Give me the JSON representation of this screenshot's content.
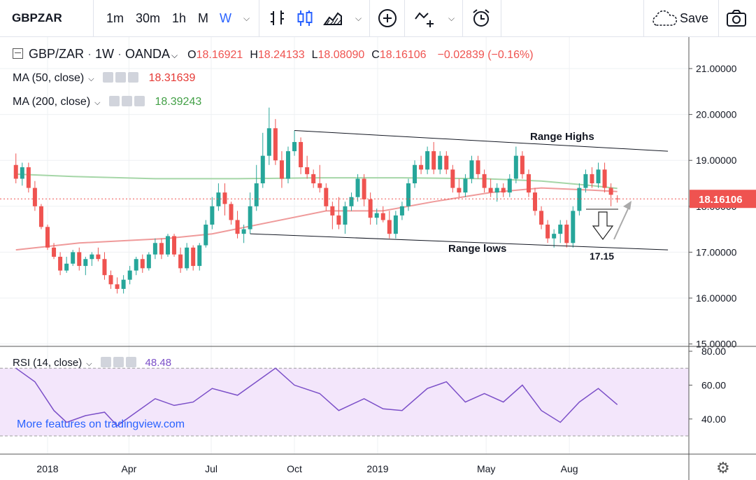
{
  "toolbar": {
    "symbol": "GBPZAR",
    "intervals": [
      "1m",
      "30m",
      "1h",
      "M",
      "W"
    ],
    "active_interval": "W",
    "save_label": "Save"
  },
  "legend": {
    "pair": "GBP/ZAR",
    "interval": "1W",
    "source": "OANDA",
    "open_label": "O",
    "open": "18.16921",
    "high_label": "H",
    "high": "18.24133",
    "low_label": "L",
    "low": "18.08090",
    "close_label": "C",
    "close": "18.16106",
    "change": "−0.02839 (−0.16%)",
    "ma50_label": "MA (50, close)",
    "ma50_value": "18.31639",
    "ma200_label": "MA (200, close)",
    "ma200_value": "18.39243",
    "rsi_label": "RSI (14, close)",
    "rsi_value": "48.48"
  },
  "colors": {
    "up": "#26a69a",
    "down": "#ef5350",
    "ma50": "#ef9a9a",
    "ma200": "#a5d6a7",
    "rsi_line": "#7b4fc8",
    "rsi_band": "#f3e6fb",
    "accent": "#2962ff"
  },
  "watermark": "More features on tradingview.com",
  "annotations": {
    "range_highs": "Range Highs",
    "range_lows": "Range lows",
    "target": "17.15"
  },
  "chart_data": [
    {
      "type": "candlestick",
      "title": "GBP/ZAR · 1W · OANDA",
      "ylim": [
        14.9,
        21.4
      ],
      "yticks": [
        "21.00000",
        "20.00000",
        "19.00000",
        "18.00000",
        "17.00000",
        "16.00000",
        "15.00000"
      ],
      "ytick_values": [
        21,
        20,
        19,
        18,
        17,
        16,
        15
      ],
      "xticks": [
        "2018",
        "Apr",
        "Jul",
        "Oct",
        "2019",
        "May",
        "Aug"
      ],
      "xtick_dates": [
        "2018-01-01",
        "2018-04-01",
        "2018-07-01",
        "2018-10-01",
        "2019-01-01",
        "2019-05-01",
        "2019-08-01"
      ],
      "last_price": "18.16106",
      "candles": [
        {
          "date": "2017-11-27",
          "o": 18.9,
          "h": 19.15,
          "l": 18.5,
          "c": 18.6
        },
        {
          "date": "2017-12-04",
          "o": 18.6,
          "h": 18.95,
          "l": 18.45,
          "c": 18.85
        },
        {
          "date": "2017-12-11",
          "o": 18.85,
          "h": 18.95,
          "l": 18.3,
          "c": 18.4
        },
        {
          "date": "2017-12-18",
          "o": 18.4,
          "h": 18.55,
          "l": 17.9,
          "c": 18.0
        },
        {
          "date": "2017-12-25",
          "o": 18.0,
          "h": 18.05,
          "l": 17.5,
          "c": 17.55
        },
        {
          "date": "2018-01-01",
          "o": 17.55,
          "h": 17.6,
          "l": 17.05,
          "c": 17.1
        },
        {
          "date": "2018-01-08",
          "o": 17.1,
          "h": 17.2,
          "l": 16.85,
          "c": 16.9
        },
        {
          "date": "2018-01-15",
          "o": 16.9,
          "h": 17.0,
          "l": 16.5,
          "c": 16.6
        },
        {
          "date": "2018-01-22",
          "o": 16.6,
          "h": 16.9,
          "l": 16.55,
          "c": 16.75
        },
        {
          "date": "2018-01-29",
          "o": 16.75,
          "h": 17.05,
          "l": 16.7,
          "c": 17.0
        },
        {
          "date": "2018-02-05",
          "o": 17.0,
          "h": 17.1,
          "l": 16.6,
          "c": 16.7
        },
        {
          "date": "2018-02-12",
          "o": 16.7,
          "h": 16.9,
          "l": 16.5,
          "c": 16.85
        },
        {
          "date": "2018-02-19",
          "o": 16.85,
          "h": 17.0,
          "l": 16.7,
          "c": 16.95
        },
        {
          "date": "2018-02-26",
          "o": 16.95,
          "h": 17.1,
          "l": 16.8,
          "c": 16.85
        },
        {
          "date": "2018-03-05",
          "o": 16.85,
          "h": 17.0,
          "l": 16.4,
          "c": 16.5
        },
        {
          "date": "2018-03-12",
          "o": 16.5,
          "h": 16.6,
          "l": 16.2,
          "c": 16.3
        },
        {
          "date": "2018-03-19",
          "o": 16.3,
          "h": 16.45,
          "l": 16.1,
          "c": 16.2
        },
        {
          "date": "2018-03-26",
          "o": 16.2,
          "h": 16.5,
          "l": 16.1,
          "c": 16.4
        },
        {
          "date": "2018-04-02",
          "o": 16.4,
          "h": 16.7,
          "l": 16.3,
          "c": 16.6
        },
        {
          "date": "2018-04-09",
          "o": 16.6,
          "h": 16.9,
          "l": 16.5,
          "c": 16.85
        },
        {
          "date": "2018-04-16",
          "o": 16.85,
          "h": 16.95,
          "l": 16.55,
          "c": 16.65
        },
        {
          "date": "2018-04-23",
          "o": 16.65,
          "h": 17.0,
          "l": 16.6,
          "c": 16.95
        },
        {
          "date": "2018-04-30",
          "o": 16.95,
          "h": 17.3,
          "l": 16.85,
          "c": 17.2
        },
        {
          "date": "2018-05-07",
          "o": 17.2,
          "h": 17.3,
          "l": 16.85,
          "c": 16.95
        },
        {
          "date": "2018-05-14",
          "o": 16.95,
          "h": 17.4,
          "l": 16.9,
          "c": 17.35
        },
        {
          "date": "2018-05-21",
          "o": 17.35,
          "h": 17.4,
          "l": 16.9,
          "c": 16.95
        },
        {
          "date": "2018-05-28",
          "o": 16.95,
          "h": 17.1,
          "l": 16.55,
          "c": 16.65
        },
        {
          "date": "2018-06-04",
          "o": 16.65,
          "h": 17.2,
          "l": 16.6,
          "c": 17.1
        },
        {
          "date": "2018-06-11",
          "o": 17.1,
          "h": 17.15,
          "l": 16.6,
          "c": 16.7
        },
        {
          "date": "2018-06-18",
          "o": 16.7,
          "h": 17.2,
          "l": 16.6,
          "c": 17.15
        },
        {
          "date": "2018-06-25",
          "o": 17.15,
          "h": 17.7,
          "l": 17.1,
          "c": 17.6
        },
        {
          "date": "2018-07-02",
          "o": 17.6,
          "h": 18.2,
          "l": 17.5,
          "c": 18.0
        },
        {
          "date": "2018-07-09",
          "o": 18.0,
          "h": 18.5,
          "l": 17.9,
          "c": 18.3
        },
        {
          "date": "2018-07-16",
          "o": 18.3,
          "h": 18.5,
          "l": 17.8,
          "c": 18.05
        },
        {
          "date": "2018-07-23",
          "o": 18.05,
          "h": 18.1,
          "l": 17.6,
          "c": 17.7
        },
        {
          "date": "2018-07-30",
          "o": 17.7,
          "h": 17.9,
          "l": 17.3,
          "c": 17.4
        },
        {
          "date": "2018-08-06",
          "o": 17.4,
          "h": 17.6,
          "l": 17.2,
          "c": 17.5
        },
        {
          "date": "2018-08-13",
          "o": 17.5,
          "h": 18.3,
          "l": 17.4,
          "c": 18.0
        },
        {
          "date": "2018-08-20",
          "o": 18.0,
          "h": 18.9,
          "l": 17.9,
          "c": 18.5
        },
        {
          "date": "2018-08-27",
          "o": 18.5,
          "h": 19.6,
          "l": 18.4,
          "c": 19.1
        },
        {
          "date": "2018-09-03",
          "o": 19.1,
          "h": 20.15,
          "l": 18.9,
          "c": 19.7
        },
        {
          "date": "2018-09-10",
          "o": 19.7,
          "h": 19.9,
          "l": 18.9,
          "c": 19.0
        },
        {
          "date": "2018-09-17",
          "o": 19.0,
          "h": 19.2,
          "l": 18.4,
          "c": 18.6
        },
        {
          "date": "2018-09-24",
          "o": 18.6,
          "h": 19.3,
          "l": 18.5,
          "c": 19.2
        },
        {
          "date": "2018-10-01",
          "o": 19.2,
          "h": 19.65,
          "l": 19.1,
          "c": 19.4
        },
        {
          "date": "2018-10-08",
          "o": 19.4,
          "h": 19.5,
          "l": 18.7,
          "c": 18.85
        },
        {
          "date": "2018-10-15",
          "o": 18.85,
          "h": 19.1,
          "l": 18.6,
          "c": 18.7
        },
        {
          "date": "2018-10-22",
          "o": 18.7,
          "h": 18.8,
          "l": 18.4,
          "c": 18.5
        },
        {
          "date": "2018-10-29",
          "o": 18.5,
          "h": 18.9,
          "l": 18.3,
          "c": 18.4
        },
        {
          "date": "2018-11-05",
          "o": 18.4,
          "h": 18.5,
          "l": 17.9,
          "c": 18.0
        },
        {
          "date": "2018-11-12",
          "o": 18.0,
          "h": 18.1,
          "l": 17.5,
          "c": 17.8
        },
        {
          "date": "2018-11-19",
          "o": 17.8,
          "h": 18.2,
          "l": 17.5,
          "c": 17.6
        },
        {
          "date": "2018-11-26",
          "o": 17.6,
          "h": 18.1,
          "l": 17.4,
          "c": 18.0
        },
        {
          "date": "2018-12-03",
          "o": 18.0,
          "h": 18.3,
          "l": 17.9,
          "c": 18.2
        },
        {
          "date": "2018-12-10",
          "o": 18.2,
          "h": 18.7,
          "l": 18.1,
          "c": 18.6
        },
        {
          "date": "2018-12-17",
          "o": 18.6,
          "h": 18.7,
          "l": 18.0,
          "c": 18.15
        },
        {
          "date": "2018-12-24",
          "o": 18.15,
          "h": 18.3,
          "l": 17.6,
          "c": 17.75
        },
        {
          "date": "2018-12-31",
          "o": 17.75,
          "h": 17.95,
          "l": 17.6,
          "c": 17.85
        },
        {
          "date": "2019-01-07",
          "o": 17.85,
          "h": 18.0,
          "l": 17.65,
          "c": 17.7
        },
        {
          "date": "2019-01-14",
          "o": 17.7,
          "h": 17.9,
          "l": 17.3,
          "c": 17.4
        },
        {
          "date": "2019-01-21",
          "o": 17.4,
          "h": 17.9,
          "l": 17.3,
          "c": 17.8
        },
        {
          "date": "2019-01-28",
          "o": 17.8,
          "h": 18.1,
          "l": 17.7,
          "c": 18.0
        },
        {
          "date": "2019-02-04",
          "o": 18.0,
          "h": 18.6,
          "l": 17.9,
          "c": 18.5
        },
        {
          "date": "2019-02-11",
          "o": 18.5,
          "h": 19.0,
          "l": 18.4,
          "c": 18.9
        },
        {
          "date": "2019-02-18",
          "o": 18.9,
          "h": 19.1,
          "l": 18.7,
          "c": 18.8
        },
        {
          "date": "2019-02-25",
          "o": 18.8,
          "h": 19.3,
          "l": 18.7,
          "c": 19.2
        },
        {
          "date": "2019-03-04",
          "o": 19.2,
          "h": 19.4,
          "l": 18.7,
          "c": 18.8
        },
        {
          "date": "2019-03-11",
          "o": 18.8,
          "h": 19.2,
          "l": 18.7,
          "c": 19.1
        },
        {
          "date": "2019-03-18",
          "o": 19.1,
          "h": 19.2,
          "l": 18.7,
          "c": 18.8
        },
        {
          "date": "2019-03-25",
          "o": 18.8,
          "h": 18.9,
          "l": 18.3,
          "c": 18.4
        },
        {
          "date": "2019-04-01",
          "o": 18.4,
          "h": 18.6,
          "l": 18.2,
          "c": 18.3
        },
        {
          "date": "2019-04-08",
          "o": 18.3,
          "h": 18.7,
          "l": 18.2,
          "c": 18.6
        },
        {
          "date": "2019-04-15",
          "o": 18.6,
          "h": 19.1,
          "l": 18.5,
          "c": 19.0
        },
        {
          "date": "2019-04-22",
          "o": 19.0,
          "h": 19.1,
          "l": 18.6,
          "c": 18.7
        },
        {
          "date": "2019-04-29",
          "o": 18.7,
          "h": 18.8,
          "l": 18.3,
          "c": 18.4
        },
        {
          "date": "2019-05-06",
          "o": 18.4,
          "h": 18.6,
          "l": 18.2,
          "c": 18.3
        },
        {
          "date": "2019-05-13",
          "o": 18.3,
          "h": 18.5,
          "l": 18.1,
          "c": 18.4
        },
        {
          "date": "2019-05-20",
          "o": 18.4,
          "h": 18.5,
          "l": 18.2,
          "c": 18.3
        },
        {
          "date": "2019-05-27",
          "o": 18.3,
          "h": 18.7,
          "l": 18.2,
          "c": 18.6
        },
        {
          "date": "2019-06-03",
          "o": 18.6,
          "h": 19.3,
          "l": 18.5,
          "c": 19.1
        },
        {
          "date": "2019-06-10",
          "o": 19.1,
          "h": 19.2,
          "l": 18.6,
          "c": 18.7
        },
        {
          "date": "2019-06-17",
          "o": 18.7,
          "h": 18.8,
          "l": 18.2,
          "c": 18.3
        },
        {
          "date": "2019-06-24",
          "o": 18.3,
          "h": 18.4,
          "l": 17.8,
          "c": 17.9
        },
        {
          "date": "2019-07-01",
          "o": 17.9,
          "h": 18.0,
          "l": 17.5,
          "c": 17.6
        },
        {
          "date": "2019-07-08",
          "o": 17.6,
          "h": 17.7,
          "l": 17.2,
          "c": 17.3
        },
        {
          "date": "2019-07-15",
          "o": 17.3,
          "h": 17.5,
          "l": 17.1,
          "c": 17.4
        },
        {
          "date": "2019-07-22",
          "o": 17.4,
          "h": 17.7,
          "l": 17.2,
          "c": 17.6
        },
        {
          "date": "2019-07-29",
          "o": 17.6,
          "h": 17.7,
          "l": 17.1,
          "c": 17.2
        },
        {
          "date": "2019-08-05",
          "o": 17.2,
          "h": 18.0,
          "l": 17.1,
          "c": 17.9
        },
        {
          "date": "2019-08-12",
          "o": 17.9,
          "h": 18.5,
          "l": 17.8,
          "c": 18.4
        },
        {
          "date": "2019-08-19",
          "o": 18.4,
          "h": 18.8,
          "l": 18.3,
          "c": 18.7
        },
        {
          "date": "2019-08-26",
          "o": 18.7,
          "h": 18.85,
          "l": 18.4,
          "c": 18.5
        },
        {
          "date": "2019-09-02",
          "o": 18.5,
          "h": 18.95,
          "l": 18.4,
          "c": 18.8
        },
        {
          "date": "2019-09-09",
          "o": 18.8,
          "h": 18.95,
          "l": 18.3,
          "c": 18.4
        },
        {
          "date": "2019-09-16",
          "o": 18.4,
          "h": 18.5,
          "l": 18.0,
          "c": 18.25
        },
        {
          "date": "2019-09-23",
          "o": 18.17,
          "h": 18.24,
          "l": 18.08,
          "c": 18.16
        }
      ],
      "ma50": [
        {
          "date": "2017-11-27",
          "v": 17.05
        },
        {
          "date": "2018-02-05",
          "v": 17.2
        },
        {
          "date": "2018-05-14",
          "v": 17.3
        },
        {
          "date": "2018-07-02",
          "v": 17.4
        },
        {
          "date": "2018-09-03",
          "v": 17.65
        },
        {
          "date": "2018-11-05",
          "v": 17.9
        },
        {
          "date": "2019-01-07",
          "v": 17.9
        },
        {
          "date": "2019-03-04",
          "v": 18.1
        },
        {
          "date": "2019-05-06",
          "v": 18.3
        },
        {
          "date": "2019-07-01",
          "v": 18.4
        },
        {
          "date": "2019-08-26",
          "v": 18.35
        },
        {
          "date": "2019-09-23",
          "v": 18.32
        }
      ],
      "ma200": [
        {
          "date": "2017-11-27",
          "v": 18.7
        },
        {
          "date": "2018-01-29",
          "v": 18.65
        },
        {
          "date": "2018-04-30",
          "v": 18.6
        },
        {
          "date": "2018-07-30",
          "v": 18.6
        },
        {
          "date": "2018-10-29",
          "v": 18.62
        },
        {
          "date": "2019-01-28",
          "v": 18.62
        },
        {
          "date": "2019-04-29",
          "v": 18.6
        },
        {
          "date": "2019-07-01",
          "v": 18.55
        },
        {
          "date": "2019-08-26",
          "v": 18.45
        },
        {
          "date": "2019-09-23",
          "v": 18.39
        }
      ],
      "trendlines": [
        {
          "name": "Range Highs",
          "from": {
            "date": "2018-10-01",
            "v": 19.65
          },
          "to": {
            "date": "2019-11-18",
            "v": 19.2
          }
        },
        {
          "name": "Range lows",
          "from": {
            "date": "2018-08-13",
            "v": 17.4
          },
          "to": {
            "date": "2019-11-18",
            "v": 17.05
          }
        }
      ],
      "target": 17.15
    },
    {
      "type": "line",
      "title": "RSI (14, close)",
      "ylim": [
        20,
        80
      ],
      "yticks": [
        "80.00",
        "60.00",
        "40.00"
      ],
      "ytick_values": [
        80,
        60,
        40
      ],
      "band": [
        30,
        70
      ],
      "points": [
        {
          "date": "2017-11-27",
          "v": 70
        },
        {
          "date": "2017-12-18",
          "v": 62
        },
        {
          "date": "2018-01-08",
          "v": 45
        },
        {
          "date": "2018-01-22",
          "v": 38
        },
        {
          "date": "2018-02-12",
          "v": 42
        },
        {
          "date": "2018-03-05",
          "v": 44
        },
        {
          "date": "2018-03-19",
          "v": 36
        },
        {
          "date": "2018-04-09",
          "v": 44
        },
        {
          "date": "2018-04-30",
          "v": 52
        },
        {
          "date": "2018-05-21",
          "v": 48
        },
        {
          "date": "2018-06-11",
          "v": 50
        },
        {
          "date": "2018-07-02",
          "v": 58
        },
        {
          "date": "2018-07-30",
          "v": 54
        },
        {
          "date": "2018-08-20",
          "v": 62
        },
        {
          "date": "2018-09-10",
          "v": 70
        },
        {
          "date": "2018-10-01",
          "v": 60
        },
        {
          "date": "2018-10-29",
          "v": 55
        },
        {
          "date": "2018-11-19",
          "v": 45
        },
        {
          "date": "2018-12-17",
          "v": 52
        },
        {
          "date": "2019-01-07",
          "v": 46
        },
        {
          "date": "2019-01-28",
          "v": 45
        },
        {
          "date": "2019-02-25",
          "v": 58
        },
        {
          "date": "2019-03-18",
          "v": 62
        },
        {
          "date": "2019-04-08",
          "v": 50
        },
        {
          "date": "2019-04-29",
          "v": 55
        },
        {
          "date": "2019-05-20",
          "v": 50
        },
        {
          "date": "2019-06-10",
          "v": 60
        },
        {
          "date": "2019-07-01",
          "v": 45
        },
        {
          "date": "2019-07-22",
          "v": 38
        },
        {
          "date": "2019-08-12",
          "v": 50
        },
        {
          "date": "2019-09-02",
          "v": 58
        },
        {
          "date": "2019-09-23",
          "v": 48.48
        }
      ]
    }
  ]
}
